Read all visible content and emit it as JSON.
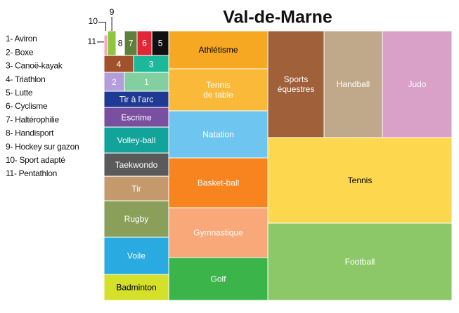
{
  "chart_data": {
    "type": "treemap",
    "title": "Val-de-Marne",
    "categories": [
      "11",
      "10",
      "9",
      "8",
      "7",
      "6",
      "5",
      "4",
      "3",
      "2",
      "1",
      "Tir à l'arc",
      "Escrime",
      "Volley-ball",
      "Taekwondo",
      "Tir",
      "Rugby",
      "Voile",
      "Badminton",
      "Athlétisme",
      "Tennis\nde table",
      "Natation",
      "Basket-ball",
      "Gymnastique",
      "Golf",
      "Sports\néquestres",
      "Handball",
      "Judo",
      "Tennis",
      "Football"
    ],
    "values": [
      1.5,
      0.3,
      4.2,
      4.2,
      6.3,
      7.4,
      8.4,
      10.1,
      12.0,
      7.8,
      17.0,
      21.2,
      25.8,
      34.0,
      30.4,
      32.2,
      47.8,
      48.8,
      34.0,
      76.1,
      84.6,
      94.5,
      100.1,
      100.1,
      86.0,
      121.6,
      126.2,
      150.5,
      319.6,
      288.2
    ],
    "colors": [
      "#f4a7b9",
      "#ffffff",
      "#8dc63f",
      "#ffffff",
      "#5f7f3c",
      "#e32636",
      "#111111",
      "#a0522d",
      "#1cb89a",
      "#b39ddb",
      "#82cf9f",
      "#1f3a93",
      "#7b4fa0",
      "#12a39a",
      "#5a5a5a",
      "#c49a6c",
      "#8aa05a",
      "#29abe2",
      "#d4e02a",
      "#f7a823",
      "#fbb93a",
      "#6ec6f0",
      "#f7841f",
      "#f9a87a",
      "#3bb54a",
      "#a0603a",
      "#c0a98a",
      "#d9a0c8",
      "#fdd84f",
      "#8cc868"
    ],
    "text_colors": [
      "#000000",
      "#000000",
      "#000000",
      "#000000",
      "#ffffff",
      "#ffffff",
      "#ffffff",
      "#ffffff",
      "#ffffff",
      "#ffffff",
      "#ffffff",
      "#ffffff",
      "#ffffff",
      "#ffffff",
      "#ffffff",
      "#ffffff",
      "#ffffff",
      "#ffffff",
      "#000000",
      "#000000",
      "#ffffff",
      "#ffffff",
      "#ffffff",
      "#ffffff",
      "#ffffff",
      "#ffffff",
      "#ffffff",
      "#ffffff",
      "#000000",
      "#ffffff"
    ],
    "legend": [
      "1- Aviron",
      "2- Boxe",
      "3- Canoë-kayak",
      "4- Triathlon",
      "5- Lutte",
      "6- Cyclisme",
      "7- Haltérophilie",
      "8- Handisport",
      "9- Hockey sur gazon",
      "10- Sport adapté",
      "11- Pentathlon"
    ]
  }
}
